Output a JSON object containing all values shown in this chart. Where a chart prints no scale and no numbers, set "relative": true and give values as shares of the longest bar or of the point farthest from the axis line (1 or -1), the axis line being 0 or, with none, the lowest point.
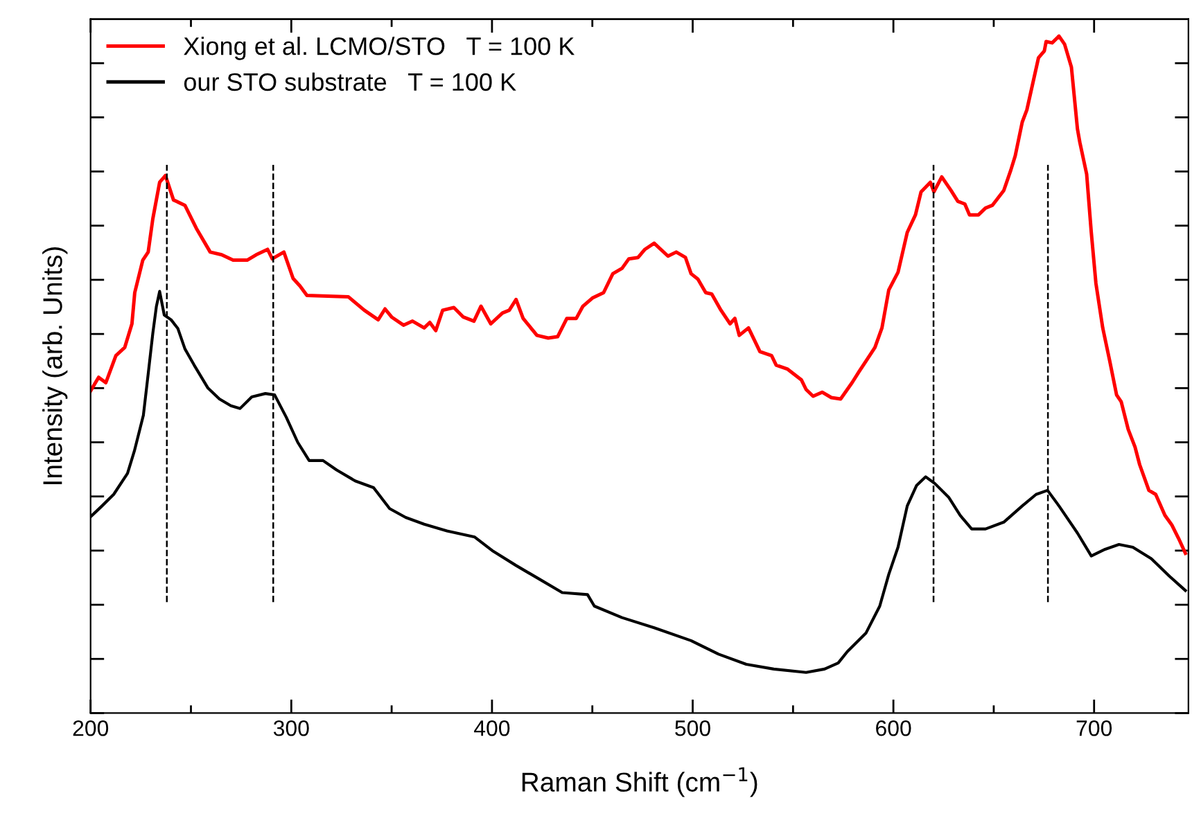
{
  "chart_data": {
    "type": "line",
    "relative": true,
    "xlabel": "Raman Shift (cm$^{−1}$)",
    "ylabel": "Intensity (arb. Units)",
    "xlim": [
      200,
      747
    ],
    "xticks": [
      200,
      {
        "value": 250,
        "label": null
      },
      300,
      {
        "value": 350,
        "label": null
      },
      400,
      {
        "value": 450,
        "label": null
      },
      500,
      {
        "value": 550,
        "label": null
      },
      600,
      {
        "value": 650,
        "label": null
      },
      700
    ],
    "tick_labels": "x",
    "legend": "top left",
    "grid": false,
    "line_style": "solid",
    "marker": "none",
    "ref_lines": [
      {
        "axis": "x",
        "value": 238,
        "color": "#000000",
        "line_style": "dashed"
      },
      {
        "axis": "x",
        "value": 291,
        "color": "#000000",
        "line_style": "dashed"
      },
      {
        "axis": "x",
        "value": 620,
        "color": "#000000",
        "line_style": "dashed"
      },
      {
        "axis": "x",
        "value": 677,
        "color": "#000000",
        "line_style": "dashed"
      }
    ],
    "series": [
      {
        "name": "Xiong et al. LCMO/STO   T = 100 K",
        "color": "#ff0000",
        "x": [
          200,
          204,
          207.6,
          212.6,
          217,
          220.6,
          222,
          226,
          228.7,
          231,
          234.4,
          237.3,
          241.3,
          247,
          252.7,
          259.6,
          265.3,
          271,
          278,
          282.5,
          288.2,
          290.5,
          296.3,
          300.9,
          304.3,
          307.8,
          328.4,
          336.4,
          343.3,
          346.7,
          350,
          355.9,
          360.4,
          366.2,
          369,
          372,
          375.4,
          381,
          385.7,
          391,
          394.5,
          399.4,
          405.2,
          408.6,
          412,
          415.5,
          422.4,
          428,
          432.7,
          437.3,
          442,
          445.3,
          450,
          455.6,
          460.2,
          464.8,
          468.2,
          472.8,
          476.2,
          480.8,
          487.7,
          491.8,
          496.4,
          499.2,
          502.6,
          506.5,
          509.5,
          514.1,
          518.6,
          521,
          523.2,
          527.8,
          533.5,
          539.3,
          541.6,
          547.3,
          554.2,
          556.5,
          560,
          564.5,
          569.1,
          573.7,
          579.4,
          582.8,
          590.8,
          594.3,
          597.7,
          602.3,
          606.9,
          611,
          613.8,
          618.4,
          620.2,
          624.1,
          628.7,
          632.1,
          635.6,
          637.9,
          642.4,
          645.9,
          649.3,
          655,
          658.5,
          660.7,
          664.2,
          666.5,
          672.3,
          675.2,
          676.1,
          679.1,
          682.5,
          685.3,
          688.7,
          691.7,
          692.9,
          696.3,
          698.6,
          700.9,
          704.3,
          707.8,
          711.2,
          713.5,
          717,
          720.4,
          722.7,
          727.3,
          730.7,
          735.3,
          738.7,
          742.1,
          745.5
        ],
        "values": [
          0.476,
          0.496,
          0.488,
          0.528,
          0.54,
          0.575,
          0.621,
          0.669,
          0.681,
          0.73,
          0.784,
          0.794,
          0.758,
          0.75,
          0.716,
          0.681,
          0.677,
          0.669,
          0.669,
          0.677,
          0.685,
          0.671,
          0.681,
          0.642,
          0.631,
          0.617,
          0.615,
          0.595,
          0.581,
          0.597,
          0.585,
          0.573,
          0.579,
          0.569,
          0.577,
          0.565,
          0.595,
          0.599,
          0.585,
          0.579,
          0.601,
          0.575,
          0.591,
          0.595,
          0.611,
          0.583,
          0.558,
          0.554,
          0.556,
          0.583,
          0.583,
          0.601,
          0.613,
          0.621,
          0.649,
          0.657,
          0.671,
          0.673,
          0.685,
          0.694,
          0.675,
          0.681,
          0.673,
          0.649,
          0.641,
          0.621,
          0.619,
          0.595,
          0.575,
          0.583,
          0.558,
          0.569,
          0.534,
          0.528,
          0.514,
          0.508,
          0.492,
          0.478,
          0.468,
          0.474,
          0.466,
          0.464,
          0.488,
          0.504,
          0.54,
          0.569,
          0.625,
          0.651,
          0.71,
          0.736,
          0.77,
          0.784,
          0.77,
          0.792,
          0.772,
          0.756,
          0.752,
          0.736,
          0.736,
          0.746,
          0.75,
          0.772,
          0.802,
          0.823,
          0.873,
          0.891,
          0.968,
          0.978,
          0.992,
          0.99,
          1,
          0.988,
          0.954,
          0.863,
          0.843,
          0.796,
          0.71,
          0.635,
          0.569,
          0.52,
          0.47,
          0.46,
          0.419,
          0.393,
          0.367,
          0.329,
          0.323,
          0.292,
          0.278,
          0.258,
          0.236
        ]
      },
      {
        "name": "our STO substrate   T = 100 K",
        "color": "#000000",
        "x": [
          200,
          205.7,
          211.5,
          218.4,
          221.8,
          226.3,
          228.7,
          231,
          232.8,
          234.4,
          236.7,
          240.1,
          243.5,
          247,
          251.6,
          258.5,
          264.2,
          269.9,
          274.5,
          280.3,
          287.1,
          291.7,
          297.5,
          303.2,
          308.9,
          315.8,
          322.6,
          331.8,
          341,
          349,
          357,
          366.2,
          377.6,
          391.4,
          400.6,
          412,
          423.5,
          435,
          447.6,
          451,
          464.8,
          480.8,
          499.2,
          512.9,
          526.7,
          540.4,
          556.5,
          565.7,
          572.5,
          577.1,
          586.3,
          593.2,
          597.7,
          602.3,
          606.9,
          611.5,
          616.1,
          620.7,
          627.5,
          633.3,
          639,
          645.9,
          655,
          664.2,
          671.1,
          676.8,
          682.5,
          691.7,
          698.6,
          705.5,
          712.4,
          719.3,
          728.5,
          737.6,
          745.5
        ],
        "values": [
          0.29,
          0.306,
          0.323,
          0.354,
          0.387,
          0.44,
          0.501,
          0.561,
          0.601,
          0.623,
          0.588,
          0.581,
          0.568,
          0.538,
          0.514,
          0.48,
          0.464,
          0.454,
          0.45,
          0.467,
          0.472,
          0.47,
          0.437,
          0.4,
          0.373,
          0.373,
          0.359,
          0.343,
          0.333,
          0.302,
          0.289,
          0.279,
          0.269,
          0.26,
          0.239,
          0.218,
          0.198,
          0.178,
          0.175,
          0.158,
          0.141,
          0.126,
          0.107,
          0.087,
          0.072,
          0.065,
          0.06,
          0.065,
          0.074,
          0.091,
          0.118,
          0.158,
          0.205,
          0.245,
          0.306,
          0.336,
          0.349,
          0.339,
          0.319,
          0.292,
          0.272,
          0.272,
          0.282,
          0.306,
          0.323,
          0.329,
          0.306,
          0.266,
          0.232,
          0.242,
          0.249,
          0.245,
          0.228,
          0.202,
          0.181
        ]
      }
    ]
  }
}
